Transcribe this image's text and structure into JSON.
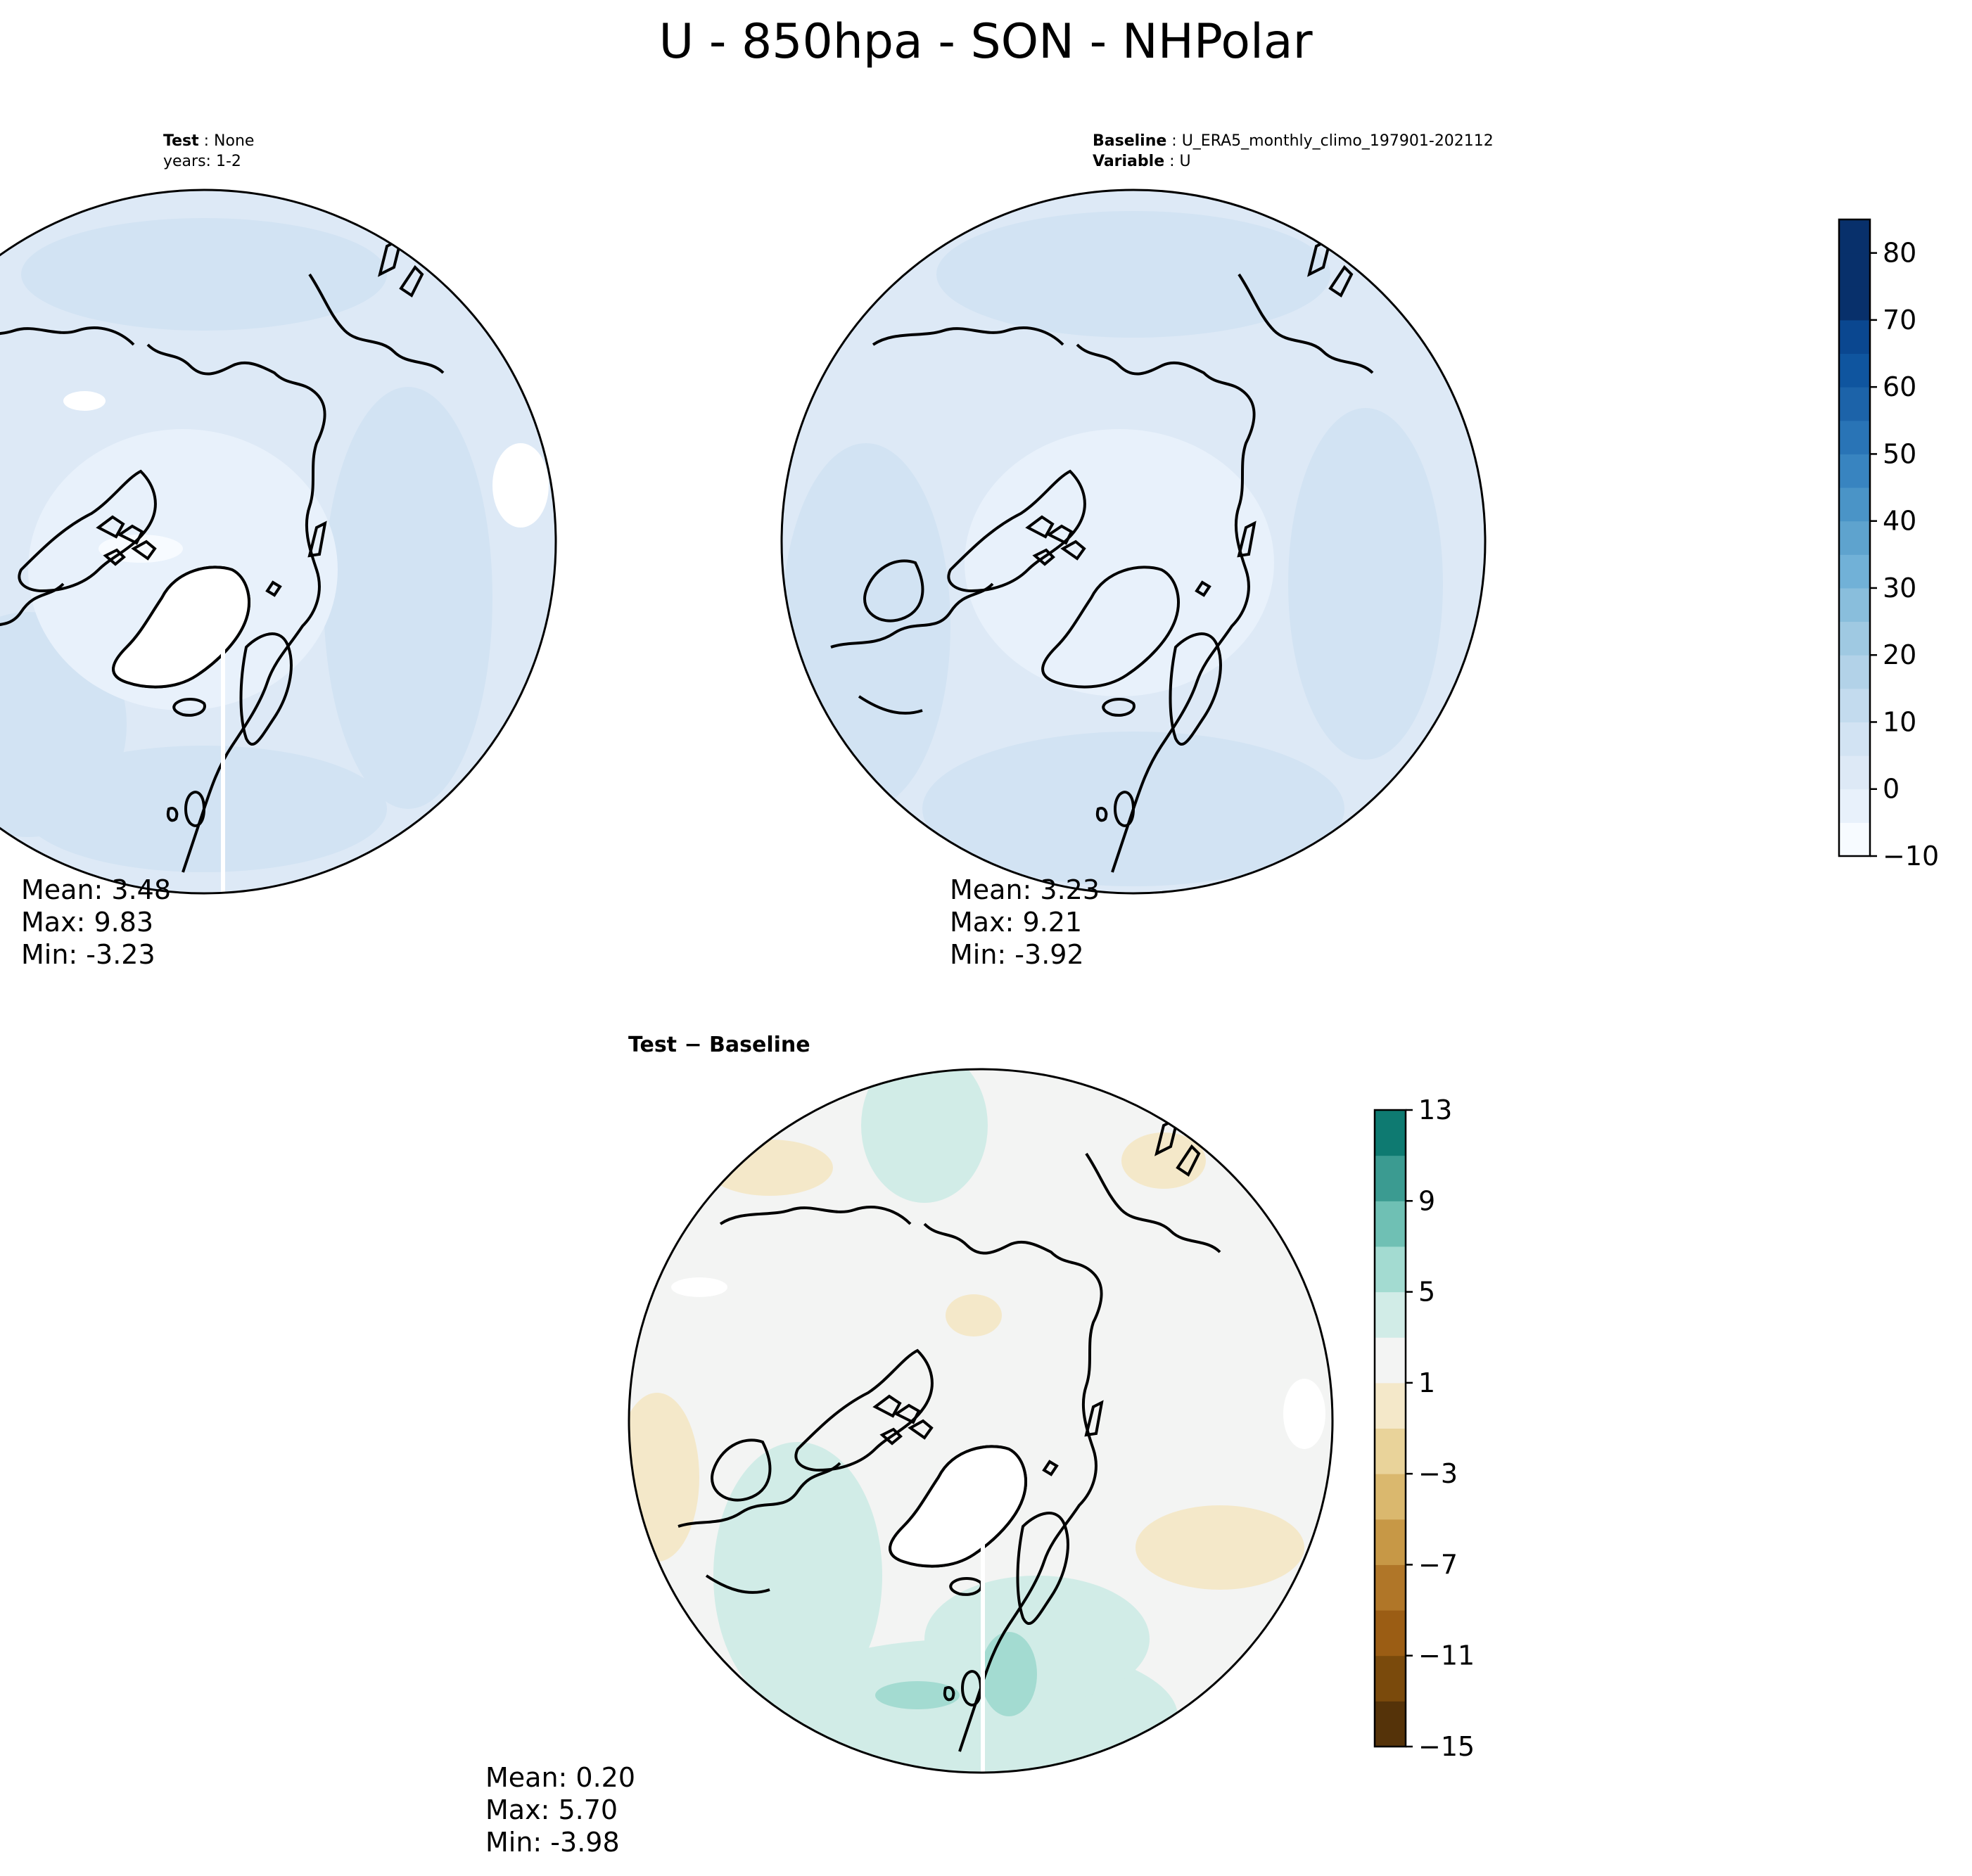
{
  "title": "U - 850hpa - SON - NHPolar",
  "colors": {
    "land_outline": "#000000",
    "missing_fill": "#ffffff",
    "sequential_colormap": [
      "#f7fbff",
      "#e8f1fb",
      "#dde9f6",
      "#d2e3f3",
      "#c3dbee",
      "#b2d2e8",
      "#9fc9e2",
      "#89bedc",
      "#71b1d7",
      "#5ea3ce",
      "#4a94c7",
      "#3884c0",
      "#2974b6",
      "#1c63a9",
      "#0f559f",
      "#0a4790",
      "#08306b"
    ],
    "diverging_colormap": [
      "#553309",
      "#7a4a0c",
      "#9b5d14",
      "#b07628",
      "#c79846",
      "#dab86e",
      "#e9d39a",
      "#f4e8c9",
      "#f3f4f3",
      "#d1ece7",
      "#a3dbd1",
      "#6fc0b4",
      "#3b9b91",
      "#0e7a71",
      "#005a4c",
      "#003c2f"
    ]
  },
  "chart_data": [
    {
      "type": "heatmap",
      "panel": "test",
      "projection": "north-polar-stereographic",
      "label": {
        "test_key": "Test",
        "test_value": "None",
        "years": "years: 1-2"
      },
      "stats": {
        "mean": "Mean:  3.48",
        "max": "Max:  9.83",
        "min": "Min: -3.23"
      },
      "values": {
        "mean": 3.48,
        "max": 9.83,
        "min": -3.23
      }
    },
    {
      "type": "heatmap",
      "panel": "baseline",
      "projection": "north-polar-stereographic",
      "label": {
        "baseline_key": "Baseline",
        "baseline_value": "U_ERA5_monthly_climo_197901-202112",
        "variable_key": "Variable",
        "variable_value": "U"
      },
      "stats": {
        "mean": "Mean:  3.23",
        "max": "Max:  9.21",
        "min": "Min: -3.92"
      },
      "values": {
        "mean": 3.23,
        "max": 9.21,
        "min": -3.92
      },
      "colorbar": {
        "range": [
          -10,
          85
        ],
        "levels": [
          -10,
          -5,
          0,
          5,
          10,
          15,
          20,
          25,
          30,
          35,
          40,
          45,
          50,
          55,
          60,
          65,
          70,
          75,
          80,
          85
        ],
        "ticks": [
          -10,
          0,
          10,
          20,
          30,
          40,
          50,
          60,
          70,
          80
        ],
        "tick_labels": [
          "−10",
          "0",
          "10",
          "20",
          "30",
          "40",
          "50",
          "60",
          "70",
          "80"
        ],
        "orientation": "vertical",
        "placement": "right"
      }
    },
    {
      "type": "heatmap",
      "panel": "difference",
      "projection": "north-polar-stereographic",
      "label": {
        "title": "Test − Baseline"
      },
      "stats": {
        "mean": "Mean:  0.20",
        "max": "Max:  5.70",
        "min": "Min: -3.98"
      },
      "values": {
        "mean": 0.2,
        "max": 5.7,
        "min": -3.98
      },
      "colorbar": {
        "range": [
          -15,
          13
        ],
        "levels": [
          -15,
          -13,
          -11,
          -9,
          -7,
          -5,
          -3,
          -1,
          1,
          3,
          5,
          7,
          9,
          11,
          13
        ],
        "ticks": [
          -15,
          -11,
          -7,
          -3,
          1,
          5,
          9,
          13
        ],
        "tick_labels": [
          "−15",
          "−11",
          "−7",
          "−3",
          "1",
          "5",
          "9",
          "13"
        ],
        "orientation": "vertical",
        "placement": "right"
      }
    }
  ]
}
